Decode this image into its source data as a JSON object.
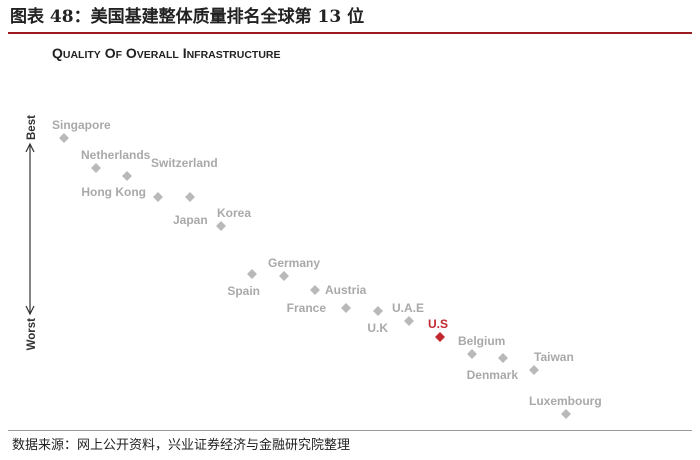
{
  "figure": {
    "title": "图表 48：美国基建整体质量排名全球第 13 位",
    "source": "数据来源：网上公开资料，兴业证券经济与金融研究院整理"
  },
  "colors": {
    "accent": "#9b1b1e",
    "highlight": "#c0282e",
    "marker": "#b9b9b9"
  },
  "chart_data": {
    "type": "scatter",
    "title": "Quality of Overall Infrastructure",
    "ylabel_top": "Best",
    "ylabel_bottom": "Worst",
    "highlight": "U.S",
    "ylim": [
      0,
      15
    ],
    "points": [
      {
        "rank": 1,
        "name": "Singapore"
      },
      {
        "rank": 2,
        "name": "Netherlands"
      },
      {
        "rank": 3,
        "name": "Switzerland"
      },
      {
        "rank": 4,
        "name": "Hong Kong"
      },
      {
        "rank": 5,
        "name": "Japan"
      },
      {
        "rank": 6,
        "name": "Korea"
      },
      {
        "rank": 7,
        "name": "Spain"
      },
      {
        "rank": 8,
        "name": "Germany"
      },
      {
        "rank": 9,
        "name": "Austria"
      },
      {
        "rank": 10,
        "name": "France"
      },
      {
        "rank": 11,
        "name": "U.K"
      },
      {
        "rank": 12,
        "name": "U.A.E"
      },
      {
        "rank": 13,
        "name": "U.S"
      },
      {
        "rank": 14,
        "name": "Belgium"
      },
      {
        "rank": 15,
        "name": "Denmark"
      },
      {
        "rank": 16,
        "name": "Taiwan"
      },
      {
        "rank": 17,
        "name": "Luxembourg"
      }
    ]
  }
}
